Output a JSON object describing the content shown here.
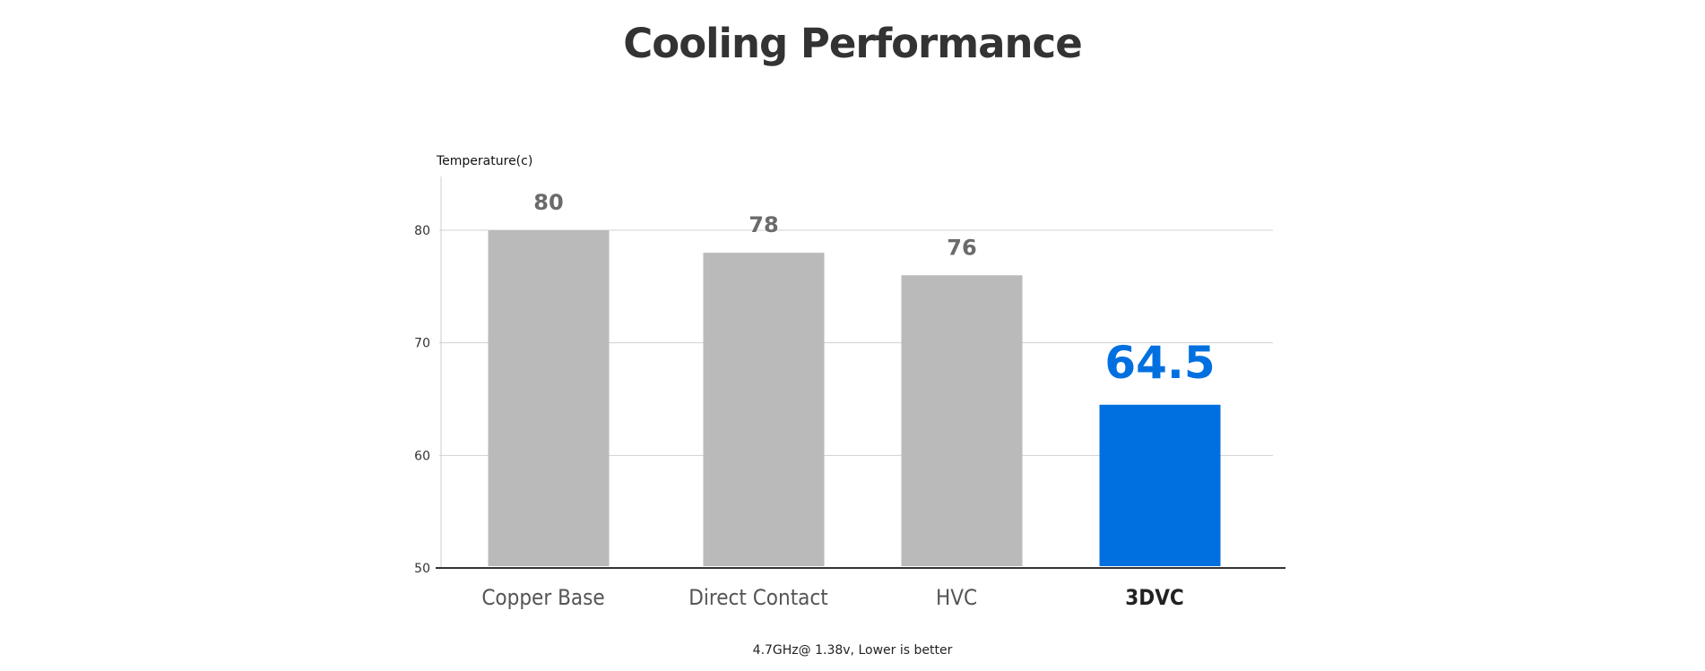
{
  "chart_data": {
    "type": "bar",
    "title": "Cooling Performance",
    "ylabel": "Temperature(c)",
    "xlabel": "",
    "note": "4.7GHz@ 1.38v, Lower is better",
    "categories": [
      "Copper Base",
      "Direct Contact",
      "HVC",
      "3DVC"
    ],
    "values": [
      80,
      78,
      76,
      64.5
    ],
    "value_labels": [
      "80",
      "78",
      "76",
      "64.5"
    ],
    "highlight_index": 3,
    "ylim": [
      50,
      85
    ],
    "yticks": [
      50,
      60,
      70,
      80
    ],
    "grid": true,
    "colors": {
      "bar": "#bababa",
      "highlight_bar": "#0070e0",
      "value_label": "#6b6b6b",
      "highlight_value_label": "#0070e0",
      "grid": "#d0d0d0",
      "axis": "#333333"
    }
  }
}
